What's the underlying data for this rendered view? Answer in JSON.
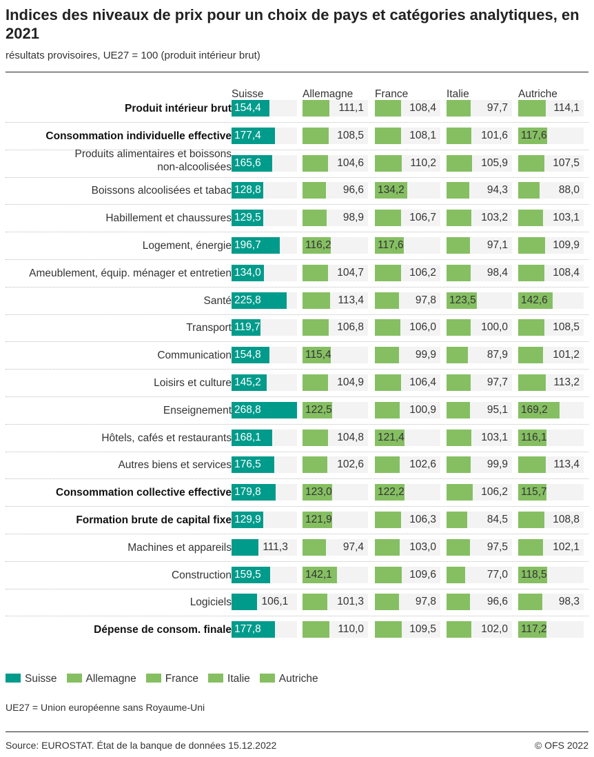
{
  "title": "Indices des niveaux de prix pour un choix de pays et catégories analytiques, en 2021",
  "subtitle": "résultats provisoires, UE27 = 100 (produit intérieur brut)",
  "note": "UE27 = Union européenne sans Royaume-Uni",
  "source": "Source: EUROSTAT. État de la banque de données 15.12.2022",
  "copyright": "© OFS 2022",
  "chart_data": {
    "type": "bar",
    "orientation": "horizontal-small-multiples",
    "xlim": [
      0,
      268.8
    ],
    "colors": {
      "Suisse": "#009b8b",
      "Allemagne": "#85bf62",
      "France": "#85bf62",
      "Italie": "#85bf62",
      "Autriche": "#85bf62",
      "background": "#f3f3f3"
    },
    "legend": "bottom-left",
    "categories": [
      "Produit intérieur brut",
      "Consommation individuelle effective",
      "Produits alimentaires et boissons non-alcoolisées",
      "Boissons alcoolisées et tabac",
      "Habillement et chaussures",
      "Logement, énergie",
      "Ameublement, équip. ménager et entretien",
      "Santé",
      "Transport",
      "Communication",
      "Loisirs et culture",
      "Enseignement",
      "Hôtels, cafés et restaurants",
      "Autres biens et services",
      "Consommation collective effective",
      "Formation brute de capital fixe",
      "Machines et appareils",
      "Construction",
      "Logiciels",
      "Dépense de consom. finale"
    ],
    "bold": [
      true,
      true,
      false,
      false,
      false,
      false,
      false,
      false,
      false,
      false,
      false,
      false,
      false,
      false,
      true,
      true,
      false,
      false,
      false,
      true
    ],
    "series": [
      {
        "name": "Suisse",
        "values": [
          "154,4",
          "177,4",
          "165,6",
          "128,8",
          "129,5",
          "196,7",
          "134,0",
          "225,8",
          "119,7",
          "154,8",
          "145,2",
          "268,8",
          "168,1",
          "176,5",
          "179,8",
          "129,9",
          "111,3",
          "159,5",
          "106,1",
          "177,8"
        ]
      },
      {
        "name": "Allemagne",
        "values": [
          "111,1",
          "108,5",
          "104,6",
          "96,6",
          "98,9",
          "116,2",
          "104,7",
          "113,4",
          "106,8",
          "115,4",
          "104,9",
          "122,5",
          "104,8",
          "102,6",
          "123,0",
          "121,9",
          "97,4",
          "142,1",
          "101,3",
          "110,0"
        ]
      },
      {
        "name": "France",
        "values": [
          "108,4",
          "108,1",
          "110,2",
          "134,2",
          "106,7",
          "117,6",
          "106,2",
          "97,8",
          "106,0",
          "99,9",
          "106,4",
          "100,9",
          "121,4",
          "102,6",
          "122,2",
          "106,3",
          "103,0",
          "109,6",
          "97,8",
          "109,5"
        ]
      },
      {
        "name": "Italie",
        "values": [
          "97,7",
          "101,6",
          "105,9",
          "94,3",
          "103,2",
          "97,1",
          "98,4",
          "123,5",
          "100,0",
          "87,9",
          "97,7",
          "95,1",
          "103,1",
          "99,9",
          "106,2",
          "84,5",
          "97,5",
          "77,0",
          "96,6",
          "102,0"
        ]
      },
      {
        "name": "Autriche",
        "values": [
          "114,1",
          "117,6",
          "107,5",
          "88,0",
          "103,1",
          "109,9",
          "108,4",
          "142,6",
          "108,5",
          "101,2",
          "113,2",
          "169,2",
          "116,1",
          "113,4",
          "115,7",
          "108,8",
          "102,1",
          "118,5",
          "98,3",
          "117,2"
        ]
      }
    ]
  }
}
